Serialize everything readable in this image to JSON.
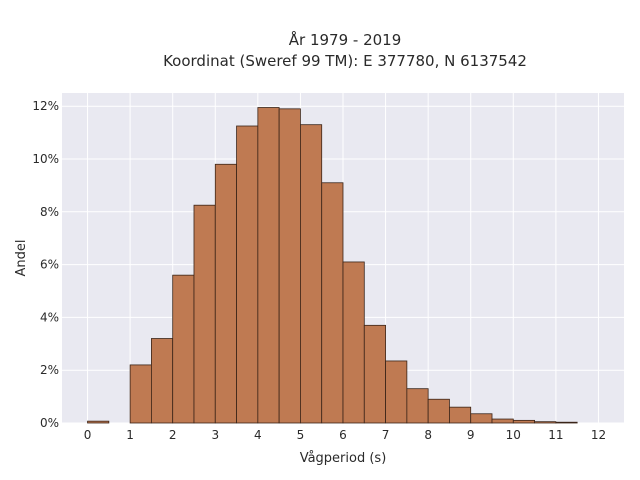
{
  "chart_data": {
    "type": "bar",
    "title_line1": "År 1979 - 2019",
    "title_line2": "Koordinat (Sweref 99 TM): E 377780, N 6137542",
    "xlabel": "Vågperiod (s)",
    "ylabel": "Andel",
    "bin_width": 0.5,
    "x_bin_starts": [
      0.0,
      0.5,
      1.0,
      1.5,
      2.0,
      2.5,
      3.0,
      3.5,
      4.0,
      4.5,
      5.0,
      5.5,
      6.0,
      6.5,
      7.0,
      7.5,
      8.0,
      8.5,
      9.0,
      9.5,
      10.0,
      10.5,
      11.0,
      11.5
    ],
    "values": [
      0.07,
      0.0,
      2.2,
      3.2,
      5.6,
      8.25,
      9.8,
      11.25,
      11.95,
      11.9,
      11.3,
      9.1,
      6.1,
      3.7,
      2.35,
      1.3,
      0.9,
      0.6,
      0.35,
      0.15,
      0.1,
      0.05,
      0.03,
      0.0
    ],
    "x_ticks": [
      0,
      1,
      2,
      3,
      4,
      5,
      6,
      7,
      8,
      9,
      10,
      11,
      12
    ],
    "x_tick_labels": [
      "0",
      "1",
      "2",
      "3",
      "4",
      "5",
      "6",
      "7",
      "8",
      "9",
      "10",
      "11",
      "12"
    ],
    "y_ticks": [
      0,
      2,
      4,
      6,
      8,
      10,
      12
    ],
    "y_tick_labels": [
      "0%",
      "2%",
      "4%",
      "6%",
      "8%",
      "10%",
      "12%"
    ],
    "xlim": [
      -0.6,
      12.6
    ],
    "ylim": [
      0,
      12.5
    ],
    "grid": true,
    "colors": {
      "bar_fill": "#bf7a52",
      "bar_edge": "#3a2418",
      "plot_bg": "#e9e9f1",
      "grid": "#ffffff"
    }
  }
}
